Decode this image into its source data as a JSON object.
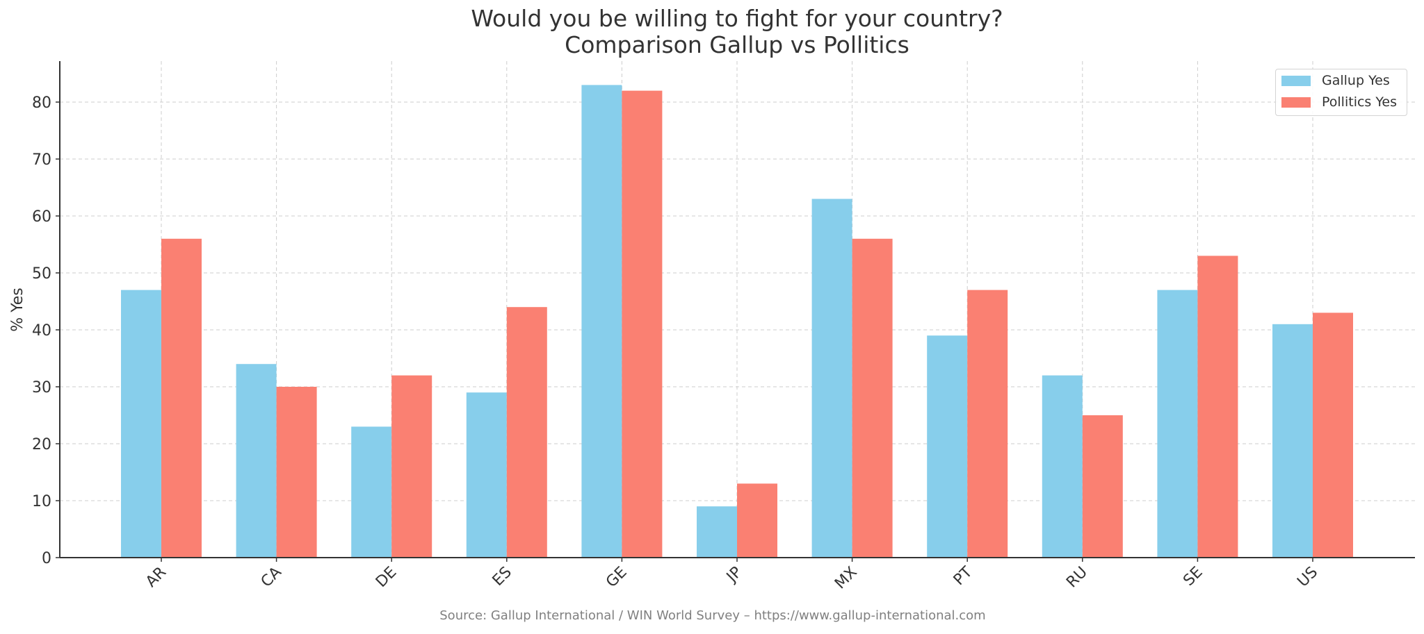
{
  "chart_data": {
    "type": "bar",
    "title": "Would you be willing to fight for your country?\nComparison Gallup vs Pollitics",
    "title_lines": [
      "Would you be willing to fight for your country?",
      "Comparison Gallup vs Pollitics"
    ],
    "xlabel": "",
    "ylabel": "% Yes",
    "ylim": [
      0,
      87
    ],
    "yticks": [
      0,
      10,
      20,
      30,
      40,
      50,
      60,
      70,
      80
    ],
    "grid": true,
    "legend_position": "upper right",
    "categories": [
      "AR",
      "CA",
      "DE",
      "ES",
      "GE",
      "JP",
      "MX",
      "PT",
      "RU",
      "SE",
      "US"
    ],
    "series": [
      {
        "name": "Gallup Yes",
        "color": "#87CEEB",
        "values": [
          47,
          34,
          23,
          29,
          83,
          9,
          63,
          39,
          32,
          47,
          41
        ]
      },
      {
        "name": "Pollitics Yes",
        "color": "#FA8072",
        "values": [
          56,
          30,
          32,
          44,
          82,
          13,
          56,
          47,
          25,
          53,
          43
        ]
      }
    ],
    "source": "Source: Gallup International / WIN World Survey – https://www.gallup-international.com"
  }
}
